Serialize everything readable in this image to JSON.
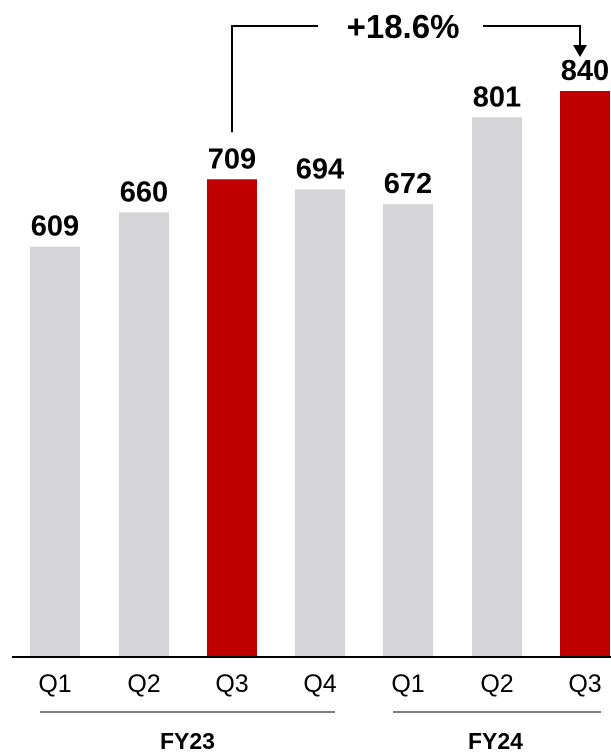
{
  "chart_data": {
    "type": "bar",
    "categories": [
      "Q1",
      "Q2",
      "Q3",
      "Q4",
      "Q1",
      "Q2",
      "Q3"
    ],
    "values": [
      609,
      660,
      709,
      694,
      672,
      801,
      840
    ],
    "highlighted": [
      false,
      false,
      true,
      false,
      false,
      false,
      true
    ],
    "groups": [
      {
        "label": "FY23",
        "categories": [
          "Q1",
          "Q2",
          "Q3",
          "Q4"
        ]
      },
      {
        "label": "FY24",
        "categories": [
          "Q1",
          "Q2",
          "Q3"
        ]
      }
    ],
    "annotation": {
      "text": "+18.6%",
      "from_category_index": 2,
      "to_category_index": 6
    },
    "colors": {
      "bar": "#d5d5d7",
      "highlight": "#c00000",
      "axis": "#000000"
    },
    "ylim": [
      0,
      840
    ],
    "grid": false,
    "title": "",
    "xlabel": "",
    "ylabel": ""
  }
}
